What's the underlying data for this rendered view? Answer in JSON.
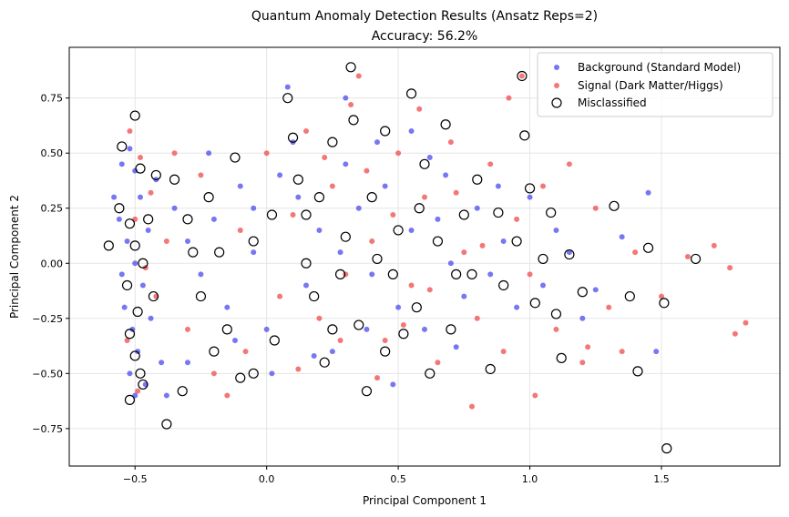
{
  "chart_data": {
    "type": "scatter",
    "title_line1": "Quantum Anomaly Detection Results (Ansatz Reps=2)",
    "title_line2": "Accuracy: 56.2%",
    "xlabel": "Principal Component 1",
    "ylabel": "Principal Component 2",
    "xlim": [
      -0.75,
      1.95
    ],
    "ylim": [
      -0.92,
      0.98
    ],
    "xticks": [
      -0.5,
      0.0,
      0.5,
      1.0,
      1.5
    ],
    "xtick_labels": [
      "−0.5",
      "0.0",
      "0.5",
      "1.0",
      "1.5"
    ],
    "yticks": [
      -0.75,
      -0.5,
      -0.25,
      0.0,
      0.25,
      0.5,
      0.75
    ],
    "ytick_labels": [
      "−0.75",
      "−0.50",
      "−0.25",
      "0.00",
      "0.25",
      "0.50",
      "0.75"
    ],
    "grid": true,
    "legend_position": "top-right",
    "colors": {
      "background": "#4a4af0",
      "signal": "#f04a4a",
      "misclassified_edge": "#000000"
    },
    "series": [
      {
        "name": "Background (Standard Model)",
        "points": [
          [
            -0.55,
            0.45
          ],
          [
            -0.52,
            0.52
          ],
          [
            -0.5,
            0.42
          ],
          [
            -0.48,
            0.3
          ],
          [
            -0.56,
            0.2
          ],
          [
            -0.53,
            0.1
          ],
          [
            -0.5,
            0.0
          ],
          [
            -0.47,
            -0.1
          ],
          [
            -0.54,
            -0.2
          ],
          [
            -0.51,
            -0.3
          ],
          [
            -0.49,
            -0.4
          ],
          [
            -0.52,
            -0.5
          ],
          [
            -0.5,
            -0.6
          ],
          [
            -0.46,
            -0.55
          ],
          [
            -0.58,
            0.3
          ],
          [
            -0.55,
            -0.05
          ],
          [
            -0.45,
            0.15
          ],
          [
            -0.44,
            -0.25
          ],
          [
            -0.42,
            0.38
          ],
          [
            -0.4,
            -0.45
          ],
          [
            -0.35,
            0.25
          ],
          [
            -0.3,
            0.1
          ],
          [
            -0.25,
            -0.05
          ],
          [
            -0.2,
            0.2
          ],
          [
            -0.15,
            -0.2
          ],
          [
            -0.1,
            0.35
          ],
          [
            -0.05,
            0.05
          ],
          [
            0.0,
            -0.3
          ],
          [
            0.05,
            0.4
          ],
          [
            0.1,
            0.55
          ],
          [
            0.12,
            0.3
          ],
          [
            0.15,
            -0.1
          ],
          [
            0.2,
            0.15
          ],
          [
            0.25,
            -0.4
          ],
          [
            0.3,
            0.45
          ],
          [
            0.35,
            0.25
          ],
          [
            0.4,
            -0.05
          ],
          [
            0.45,
            0.35
          ],
          [
            0.5,
            -0.2
          ],
          [
            0.55,
            0.15
          ],
          [
            0.6,
            -0.3
          ],
          [
            0.65,
            0.2
          ],
          [
            0.7,
            0.0
          ],
          [
            0.75,
            -0.15
          ],
          [
            0.8,
            0.25
          ],
          [
            0.85,
            -0.05
          ],
          [
            0.9,
            0.1
          ],
          [
            0.95,
            -0.2
          ],
          [
            1.0,
            0.3
          ],
          [
            1.05,
            -0.1
          ],
          [
            1.15,
            0.05
          ],
          [
            1.25,
            -0.12
          ],
          [
            1.35,
            0.12
          ],
          [
            1.45,
            0.32
          ],
          [
            1.48,
            -0.4
          ],
          [
            1.2,
            -0.25
          ],
          [
            0.3,
            0.75
          ],
          [
            0.08,
            0.8
          ],
          [
            -0.38,
            -0.6
          ],
          [
            -0.3,
            -0.45
          ],
          [
            0.18,
            -0.42
          ],
          [
            0.42,
            0.55
          ],
          [
            0.62,
            0.48
          ],
          [
            0.72,
            -0.38
          ],
          [
            -0.22,
            0.5
          ],
          [
            0.02,
            -0.5
          ],
          [
            0.48,
            -0.55
          ],
          [
            0.88,
            0.35
          ],
          [
            -0.12,
            -0.35
          ],
          [
            0.28,
            0.05
          ],
          [
            0.55,
            0.6
          ],
          [
            -0.05,
            0.25
          ],
          [
            0.38,
            -0.3
          ],
          [
            0.68,
            0.4
          ],
          [
            1.1,
            0.15
          ]
        ]
      },
      {
        "name": "Signal (Dark Matter/Higgs)",
        "points": [
          [
            -0.52,
            0.6
          ],
          [
            -0.48,
            0.48
          ],
          [
            -0.5,
            0.2
          ],
          [
            -0.46,
            -0.02
          ],
          [
            -0.53,
            -0.35
          ],
          [
            -0.49,
            -0.58
          ],
          [
            -0.44,
            0.32
          ],
          [
            -0.42,
            -0.15
          ],
          [
            -0.38,
            0.1
          ],
          [
            -0.3,
            -0.3
          ],
          [
            -0.25,
            0.4
          ],
          [
            -0.2,
            -0.5
          ],
          [
            -0.1,
            0.15
          ],
          [
            0.0,
            0.5
          ],
          [
            0.05,
            -0.15
          ],
          [
            0.1,
            0.22
          ],
          [
            0.15,
            0.6
          ],
          [
            0.2,
            -0.25
          ],
          [
            0.25,
            0.35
          ],
          [
            0.3,
            -0.05
          ],
          [
            0.32,
            0.72
          ],
          [
            0.35,
            0.85
          ],
          [
            0.4,
            0.1
          ],
          [
            0.45,
            -0.35
          ],
          [
            0.5,
            0.5
          ],
          [
            0.55,
            -0.1
          ],
          [
            0.6,
            0.3
          ],
          [
            0.65,
            -0.45
          ],
          [
            0.7,
            0.55
          ],
          [
            0.75,
            0.05
          ],
          [
            0.8,
            -0.25
          ],
          [
            0.85,
            0.45
          ],
          [
            0.9,
            -0.4
          ],
          [
            0.95,
            0.2
          ],
          [
            1.0,
            -0.05
          ],
          [
            1.05,
            0.35
          ],
          [
            1.1,
            -0.3
          ],
          [
            1.15,
            0.45
          ],
          [
            1.2,
            -0.45
          ],
          [
            1.25,
            0.25
          ],
          [
            1.3,
            -0.2
          ],
          [
            1.4,
            0.05
          ],
          [
            1.5,
            -0.15
          ],
          [
            1.6,
            0.03
          ],
          [
            1.7,
            0.08
          ],
          [
            1.76,
            -0.02
          ],
          [
            1.78,
            -0.32
          ],
          [
            1.82,
            -0.27
          ],
          [
            1.22,
            -0.38
          ],
          [
            1.02,
            -0.6
          ],
          [
            0.97,
            0.85
          ],
          [
            0.92,
            0.75
          ],
          [
            0.78,
            -0.65
          ],
          [
            0.58,
            0.7
          ],
          [
            0.42,
            -0.52
          ],
          [
            -0.35,
            0.5
          ],
          [
            -0.15,
            -0.6
          ],
          [
            0.12,
            -0.48
          ],
          [
            0.22,
            0.48
          ],
          [
            0.48,
            0.22
          ],
          [
            0.62,
            -0.12
          ],
          [
            0.72,
            0.32
          ],
          [
            0.82,
            0.08
          ],
          [
            0.52,
            -0.28
          ],
          [
            0.38,
            0.42
          ],
          [
            -0.08,
            -0.4
          ],
          [
            0.28,
            -0.35
          ],
          [
            1.35,
            -0.4
          ]
        ]
      }
    ],
    "misclassified": [
      [
        -0.5,
        0.67
      ],
      [
        -0.55,
        0.53
      ],
      [
        -0.48,
        0.43
      ],
      [
        -0.42,
        0.4
      ],
      [
        -0.56,
        0.25
      ],
      [
        -0.52,
        0.18
      ],
      [
        -0.5,
        0.08
      ],
      [
        -0.47,
        0.0
      ],
      [
        -0.53,
        -0.1
      ],
      [
        -0.49,
        -0.22
      ],
      [
        -0.52,
        -0.32
      ],
      [
        -0.5,
        -0.42
      ],
      [
        -0.48,
        -0.5
      ],
      [
        -0.47,
        -0.55
      ],
      [
        -0.52,
        -0.62
      ],
      [
        -0.6,
        0.08
      ],
      [
        -0.45,
        0.2
      ],
      [
        -0.43,
        -0.15
      ],
      [
        -0.38,
        -0.73
      ],
      [
        -0.35,
        0.38
      ],
      [
        -0.3,
        0.2
      ],
      [
        -0.28,
        0.05
      ],
      [
        -0.25,
        -0.15
      ],
      [
        -0.22,
        0.3
      ],
      [
        -0.2,
        -0.4
      ],
      [
        -0.18,
        0.05
      ],
      [
        -0.15,
        -0.3
      ],
      [
        -0.12,
        0.48
      ],
      [
        -0.1,
        -0.52
      ],
      [
        -0.05,
        0.1
      ],
      [
        0.02,
        0.22
      ],
      [
        0.03,
        -0.35
      ],
      [
        0.08,
        0.75
      ],
      [
        0.1,
        0.57
      ],
      [
        0.12,
        0.38
      ],
      [
        0.15,
        0.0
      ],
      [
        0.18,
        -0.15
      ],
      [
        0.2,
        0.3
      ],
      [
        0.22,
        -0.45
      ],
      [
        0.25,
        0.55
      ],
      [
        0.3,
        0.12
      ],
      [
        0.32,
        0.89
      ],
      [
        0.33,
        0.65
      ],
      [
        0.35,
        -0.28
      ],
      [
        0.4,
        0.3
      ],
      [
        0.42,
        0.02
      ],
      [
        0.45,
        -0.4
      ],
      [
        0.5,
        0.15
      ],
      [
        0.55,
        0.77
      ],
      [
        0.57,
        -0.2
      ],
      [
        0.6,
        0.45
      ],
      [
        0.62,
        -0.5
      ],
      [
        0.65,
        0.1
      ],
      [
        0.68,
        0.63
      ],
      [
        0.7,
        -0.3
      ],
      [
        0.75,
        0.22
      ],
      [
        0.78,
        -0.05
      ],
      [
        0.8,
        0.38
      ],
      [
        0.85,
        -0.48
      ],
      [
        0.88,
        0.23
      ],
      [
        0.9,
        -0.1
      ],
      [
        0.95,
        0.1
      ],
      [
        0.97,
        0.85
      ],
      [
        0.98,
        0.58
      ],
      [
        1.0,
        0.34
      ],
      [
        1.02,
        -0.18
      ],
      [
        1.05,
        0.02
      ],
      [
        1.08,
        0.23
      ],
      [
        1.1,
        -0.23
      ],
      [
        1.12,
        -0.43
      ],
      [
        1.15,
        0.04
      ],
      [
        1.2,
        -0.13
      ],
      [
        1.32,
        0.26
      ],
      [
        1.38,
        -0.15
      ],
      [
        1.41,
        -0.49
      ],
      [
        1.45,
        0.07
      ],
      [
        1.51,
        -0.18
      ],
      [
        1.52,
        -0.84
      ],
      [
        1.63,
        0.02
      ],
      [
        0.38,
        -0.58
      ],
      [
        0.48,
        -0.05
      ],
      [
        0.58,
        0.25
      ],
      [
        0.72,
        -0.05
      ],
      [
        -0.05,
        -0.5
      ],
      [
        0.28,
        -0.05
      ],
      [
        0.52,
        -0.32
      ],
      [
        0.45,
        0.6
      ],
      [
        0.25,
        -0.3
      ],
      [
        -0.32,
        -0.58
      ],
      [
        0.15,
        0.22
      ]
    ]
  }
}
